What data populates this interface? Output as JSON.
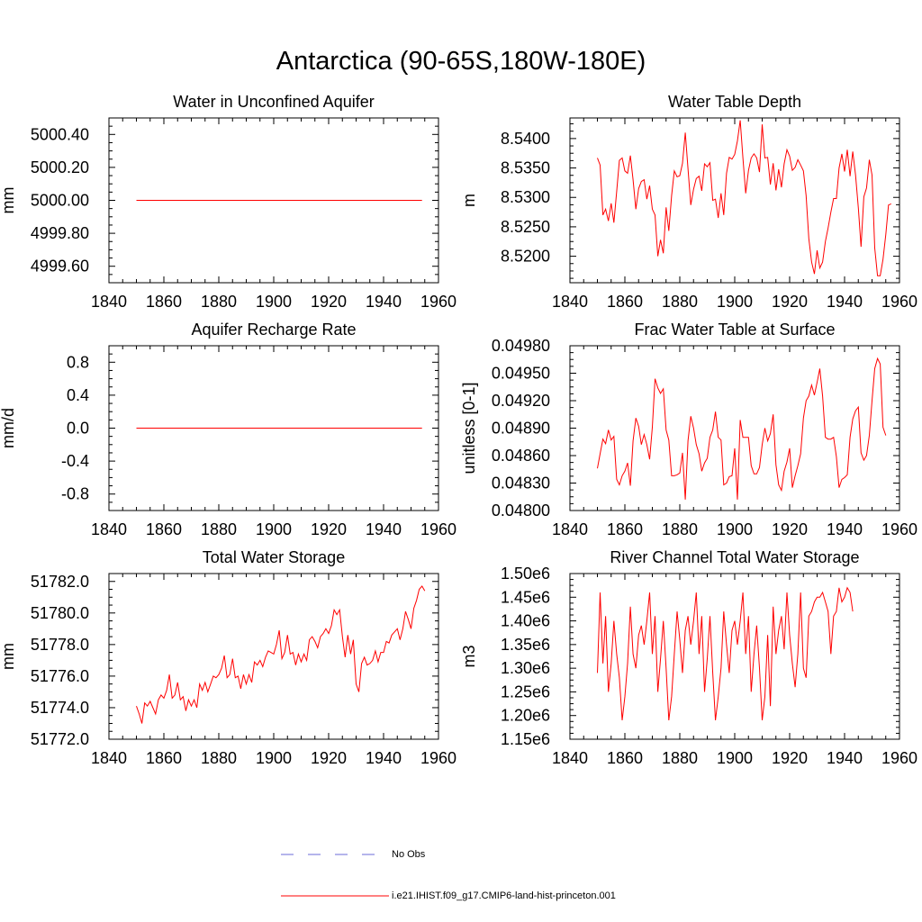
{
  "figure_title": "Antarctica (90-65S,180W-180E)",
  "legend": {
    "obs_label": "No Obs",
    "obs_color": "#6b6bd9",
    "model_label": "i.e21.IHIST.f09_g17.CMIP6-land-hist-princeton.001",
    "model_color": "#ff0000"
  },
  "chart_data": [
    {
      "type": "line",
      "title": "Water in Unconfined Aquifer",
      "ylabel": "mm",
      "xlim": [
        1840,
        1960
      ],
      "ylim": [
        4999.5,
        5000.5
      ],
      "yticks": [
        4999.6,
        4999.8,
        5000.0,
        5000.2,
        5000.4
      ],
      "ytick_labels": [
        "4999.60",
        "4999.80",
        "5000.00",
        "5000.20",
        "5000.40"
      ],
      "xticks": [
        1840,
        1860,
        1880,
        1900,
        1920,
        1940,
        1960
      ],
      "x_start": 1850,
      "x_step": 1,
      "series": [
        {
          "color": "#ff0000",
          "values": [
            5000.0,
            5000.0,
            5000.0,
            5000.0,
            5000.0,
            5000.0,
            5000.0,
            5000.0,
            5000.0,
            5000.0,
            5000.0,
            5000.0,
            5000.0,
            5000.0,
            5000.0,
            5000.0,
            5000.0,
            5000.0,
            5000.0,
            5000.0,
            5000.0,
            5000.0,
            5000.0,
            5000.0,
            5000.0,
            5000.0,
            5000.0,
            5000.0,
            5000.0,
            5000.0,
            5000.0,
            5000.0,
            5000.0,
            5000.0,
            5000.0,
            5000.0,
            5000.0,
            5000.0,
            5000.0,
            5000.0,
            5000.0,
            5000.0,
            5000.0,
            5000.0,
            5000.0,
            5000.0,
            5000.0,
            5000.0,
            5000.0,
            5000.0,
            5000.0,
            5000.0,
            5000.0,
            5000.0,
            5000.0,
            5000.0,
            5000.0,
            5000.0,
            5000.0,
            5000.0,
            5000.0,
            5000.0,
            5000.0,
            5000.0,
            5000.0,
            5000.0,
            5000.0,
            5000.0,
            5000.0,
            5000.0,
            5000.0,
            5000.0,
            5000.0,
            5000.0,
            5000.0,
            5000.0,
            5000.0,
            5000.0,
            5000.0,
            5000.0,
            5000.0,
            5000.0,
            5000.0,
            5000.0,
            5000.0,
            5000.0,
            5000.0,
            5000.0,
            5000.0,
            5000.0,
            5000.0,
            5000.0,
            5000.0,
            5000.0,
            5000.0,
            5000.0,
            5000.0,
            5000.0,
            5000.0,
            5000.0,
            5000.0,
            5000.0,
            5000.0,
            5000.0,
            5000.0
          ]
        }
      ]
    },
    {
      "type": "line",
      "title": "Water Table Depth",
      "ylabel": "m",
      "xlim": [
        1840,
        1960
      ],
      "ylim": [
        8.5155,
        8.5435
      ],
      "yticks": [
        8.52,
        8.525,
        8.53,
        8.535,
        8.54
      ],
      "ytick_labels": [
        "8.5200",
        "8.5250",
        "8.5300",
        "8.5350",
        "8.5400"
      ],
      "xticks": [
        1840,
        1860,
        1880,
        1900,
        1920,
        1940,
        1960
      ],
      "x_start": 1850,
      "x_step": 1,
      "series": [
        {
          "color": "#ff0000",
          "values": [
            8.5367,
            8.5355,
            8.527,
            8.528,
            8.526,
            8.529,
            8.5257,
            8.531,
            8.5363,
            8.5367,
            8.5345,
            8.5341,
            8.5371,
            8.533,
            8.528,
            8.5315,
            8.5327,
            8.533,
            8.5297,
            8.532,
            8.528,
            8.527,
            8.52,
            8.5228,
            8.5205,
            8.5283,
            8.5243,
            8.5303,
            8.5345,
            8.5335,
            8.5337,
            8.5358,
            8.541,
            8.5349,
            8.5287,
            8.5314,
            8.5332,
            8.5336,
            8.5311,
            8.5357,
            8.5352,
            8.5359,
            8.5295,
            8.5297,
            8.5265,
            8.5307,
            8.527,
            8.5341,
            8.5368,
            8.5365,
            8.5373,
            8.5396,
            8.5431,
            8.5367,
            8.5307,
            8.5346,
            8.5367,
            8.5374,
            8.5367,
            8.5343,
            8.5424,
            8.5367,
            8.5368,
            8.5322,
            8.5358,
            8.5312,
            8.5348,
            8.5317,
            8.5357,
            8.5381,
            8.537,
            8.5346,
            8.5351,
            8.5364,
            8.5355,
            8.5345,
            8.5303,
            8.523,
            8.519,
            8.517,
            8.521,
            8.518,
            8.519,
            8.5225,
            8.5248,
            8.5275,
            8.5298,
            8.5298,
            8.535,
            8.5374,
            8.5344,
            8.5381,
            8.5336,
            8.5378,
            8.5338,
            8.5282,
            8.5216,
            8.5301,
            8.5316,
            8.5364,
            8.5338,
            8.5214,
            8.5167,
            8.5167,
            8.5195,
            8.5237,
            8.5287,
            8.5289
          ]
        }
      ]
    },
    {
      "type": "line",
      "title": "Aquifer Recharge Rate",
      "ylabel": "mm/d",
      "xlim": [
        1840,
        1960
      ],
      "ylim": [
        -1.0,
        1.0
      ],
      "yticks": [
        -0.8,
        -0.4,
        0.0,
        0.4,
        0.8
      ],
      "ytick_labels": [
        "-0.8",
        "-0.4",
        "0.0",
        "0.4",
        "0.8"
      ],
      "xticks": [
        1840,
        1860,
        1880,
        1900,
        1920,
        1940,
        1960
      ],
      "x_start": 1850,
      "x_step": 1,
      "series": [
        {
          "color": "#ff0000",
          "values": [
            0.0,
            0.0,
            0.0,
            0.0,
            0.0,
            0.0,
            0.0,
            0.0,
            0.0,
            0.0,
            0.0,
            0.0,
            0.0,
            0.0,
            0.0,
            0.0,
            0.0,
            0.0,
            0.0,
            0.0,
            0.0,
            0.0,
            0.0,
            0.0,
            0.0,
            0.0,
            0.0,
            0.0,
            0.0,
            0.0,
            0.0,
            0.0,
            0.0,
            0.0,
            0.0,
            0.0,
            0.0,
            0.0,
            0.0,
            0.0,
            0.0,
            0.0,
            0.0,
            0.0,
            0.0,
            0.0,
            0.0,
            0.0,
            0.0,
            0.0,
            0.0,
            0.0,
            0.0,
            0.0,
            0.0,
            0.0,
            0.0,
            0.0,
            0.0,
            0.0,
            0.0,
            0.0,
            0.0,
            0.0,
            0.0,
            0.0,
            0.0,
            0.0,
            0.0,
            0.0,
            0.0,
            0.0,
            0.0,
            0.0,
            0.0,
            0.0,
            0.0,
            0.0,
            0.0,
            0.0,
            0.0,
            0.0,
            0.0,
            0.0,
            0.0,
            0.0,
            0.0,
            0.0,
            0.0,
            0.0,
            0.0,
            0.0,
            0.0,
            0.0,
            0.0,
            0.0,
            0.0,
            0.0,
            0.0,
            0.0,
            0.0,
            0.0,
            0.0,
            0.0,
            0.0
          ]
        }
      ]
    },
    {
      "type": "line",
      "title": "Frac Water Table at Surface",
      "ylabel": "unitless [0-1]",
      "xlim": [
        1840,
        1960
      ],
      "ylim": [
        0.048,
        0.0498
      ],
      "yticks": [
        0.048,
        0.0483,
        0.0486,
        0.0489,
        0.0492,
        0.0495,
        0.0498
      ],
      "ytick_labels": [
        "0.04800",
        "0.04830",
        "0.04860",
        "0.04890",
        "0.04920",
        "0.04950",
        "0.04980"
      ],
      "xticks": [
        1840,
        1860,
        1880,
        1900,
        1920,
        1940,
        1960
      ],
      "x_start": 1850,
      "x_step": 1,
      "series": [
        {
          "color": "#ff0000",
          "values": [
            0.04846,
            0.04862,
            0.04878,
            0.04873,
            0.04888,
            0.04877,
            0.04881,
            0.04834,
            0.04828,
            0.04838,
            0.04843,
            0.04852,
            0.04827,
            0.04876,
            0.04901,
            0.04892,
            0.04872,
            0.04883,
            0.04872,
            0.04856,
            0.04891,
            0.04944,
            0.04934,
            0.04928,
            0.04933,
            0.04888,
            0.04877,
            0.04838,
            0.04838,
            0.04839,
            0.04841,
            0.04863,
            0.04812,
            0.04876,
            0.04903,
            0.0489,
            0.04872,
            0.04862,
            0.04843,
            0.04852,
            0.04857,
            0.0488,
            0.04888,
            0.04908,
            0.0488,
            0.04877,
            0.04828,
            0.0483,
            0.04837,
            0.04838,
            0.04868,
            0.04812,
            0.04899,
            0.0488,
            0.0488,
            0.0488,
            0.04849,
            0.0484,
            0.0484,
            0.04847,
            0.04872,
            0.0489,
            0.04876,
            0.04884,
            0.04905,
            0.0485,
            0.04828,
            0.04822,
            0.04843,
            0.04853,
            0.04868,
            0.04825,
            0.04838,
            0.04849,
            0.04862,
            0.04901,
            0.0492,
            0.04925,
            0.04937,
            0.04926,
            0.0494,
            0.04955,
            0.04925,
            0.0488,
            0.04878,
            0.04878,
            0.0488,
            0.04859,
            0.04825,
            0.04834,
            0.04836,
            0.04839,
            0.0488,
            0.049,
            0.04909,
            0.04913,
            0.04863,
            0.04855,
            0.0486,
            0.04882,
            0.0492,
            0.04955,
            0.04966,
            0.0496,
            0.04891,
            0.04882
          ]
        }
      ]
    },
    {
      "type": "line",
      "title": "Total Water Storage",
      "ylabel": "mm",
      "xlim": [
        1840,
        1960
      ],
      "ylim": [
        51772.0,
        51782.5
      ],
      "yticks": [
        51772.0,
        51774.0,
        51776.0,
        51778.0,
        51780.0,
        51782.0
      ],
      "ytick_labels": [
        "51772.0",
        "51774.0",
        "51776.0",
        "51778.0",
        "51780.0",
        "51782.0"
      ],
      "xticks": [
        1840,
        1860,
        1880,
        1900,
        1920,
        1940,
        1960
      ],
      "x_start": 1850,
      "x_step": 1,
      "series": [
        {
          "color": "#ff0000",
          "values": [
            51774.1,
            51773.6,
            51773.0,
            51774.3,
            51774.1,
            51774.4,
            51774.0,
            51773.6,
            51774.5,
            51774.8,
            51774.6,
            51775.1,
            51776.1,
            51774.6,
            51774.8,
            51775.6,
            51774.5,
            51774.7,
            51773.8,
            51774.5,
            51774.1,
            51774.5,
            51774.0,
            51775.5,
            51775.1,
            51775.6,
            51775.0,
            51775.5,
            51776.0,
            51775.9,
            51776.1,
            51776.5,
            51777.3,
            51775.9,
            51776.1,
            51777.1,
            51775.9,
            51776.0,
            51775.2,
            51776.1,
            51775.5,
            51776.1,
            51775.6,
            51776.9,
            51776.7,
            51777.0,
            51776.6,
            51777.2,
            51777.6,
            51777.5,
            51777.4,
            51778.0,
            51778.9,
            51777.1,
            51777.5,
            51778.6,
            51777.4,
            51777.5,
            51776.7,
            51777.4,
            51776.9,
            51777.4,
            51777.0,
            51778.3,
            51778.5,
            51778.2,
            51777.8,
            51778.5,
            51778.7,
            51779.0,
            51778.7,
            51779.2,
            51780.2,
            51779.9,
            51780.2,
            51778.5,
            51777.2,
            51778.6,
            51777.4,
            51778.3,
            51775.5,
            51775.0,
            51776.8,
            51777.2,
            51776.7,
            51776.8,
            51777.0,
            51777.6,
            51776.9,
            51777.5,
            51777.5,
            51778.2,
            51778.1,
            51778.6,
            51778.8,
            51779.0,
            51778.3,
            51779.0,
            51780.1,
            51779.6,
            51779.0,
            51780.3,
            51780.8,
            51781.5,
            51781.7,
            51781.4
          ]
        }
      ]
    },
    {
      "type": "line",
      "title": "River Channel Total Water Storage",
      "ylabel": "m3",
      "xlim": [
        1840,
        1960
      ],
      "ylim": [
        1150000.0,
        1500000.0
      ],
      "yticks": [
        1150000.0,
        1200000.0,
        1250000.0,
        1300000.0,
        1350000.0,
        1400000.0,
        1450000.0,
        1500000.0
      ],
      "ytick_labels": [
        "1.15e6",
        "1.20e6",
        "1.25e6",
        "1.30e6",
        "1.35e6",
        "1.40e6",
        "1.45e6",
        "1.50e6"
      ],
      "xticks": [
        1840,
        1860,
        1880,
        1900,
        1920,
        1940,
        1960
      ],
      "x_start": 1850,
      "x_step": 1,
      "series": [
        {
          "color": "#ff0000",
          "values": [
            1290000.0,
            1460000.0,
            1310000.0,
            1410000.0,
            1250000.0,
            1310000.0,
            1400000.0,
            1330000.0,
            1280000.0,
            1190000.0,
            1240000.0,
            1310000.0,
            1430000.0,
            1330000.0,
            1300000.0,
            1370000.0,
            1390000.0,
            1350000.0,
            1400000.0,
            1460000.0,
            1330000.0,
            1410000.0,
            1250000.0,
            1320000.0,
            1400000.0,
            1300000.0,
            1190000.0,
            1240000.0,
            1330000.0,
            1420000.0,
            1360000.0,
            1290000.0,
            1380000.0,
            1410000.0,
            1350000.0,
            1400000.0,
            1460000.0,
            1330000.0,
            1410000.0,
            1250000.0,
            1320000.0,
            1410000.0,
            1290000.0,
            1190000.0,
            1240000.0,
            1300000.0,
            1420000.0,
            1350000.0,
            1290000.0,
            1380000.0,
            1400000.0,
            1350000.0,
            1400000.0,
            1460000.0,
            1330000.0,
            1410000.0,
            1250000.0,
            1330000.0,
            1390000.0,
            1300000.0,
            1190000.0,
            1240000.0,
            1370000.0,
            1220000.0,
            1430000.0,
            1330000.0,
            1380000.0,
            1410000.0,
            1340000.0,
            1460000.0,
            1370000.0,
            1310000.0,
            1260000.0,
            1330000.0,
            1460000.0,
            1300000.0,
            1280000.0,
            1410000.0,
            1420000.0,
            1440000.0,
            1450000.0,
            1450000.0,
            1460000.0,
            1440000.0,
            1420000.0,
            1330000.0,
            1410000.0,
            1420000.0,
            1470000.0,
            1440000.0,
            1450000.0,
            1470000.0,
            1460000.0,
            1420000.0
          ]
        }
      ]
    }
  ]
}
